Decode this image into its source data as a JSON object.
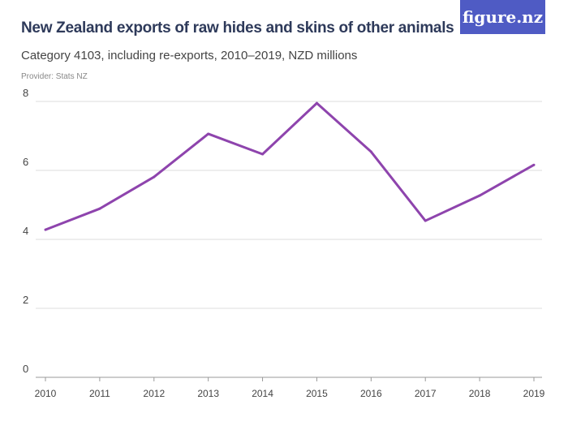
{
  "header": {
    "title": "New Zealand exports of raw hides and skins of other animals",
    "subtitle": "Category 4103, including re-exports, 2010–2019, NZD millions",
    "provider": "Provider: Stats NZ",
    "logo": "figure.nz"
  },
  "colors": {
    "line": "#8e44ad",
    "logo_bg": "#4f5bc4",
    "grid": "#dddddd"
  },
  "chart_data": {
    "type": "line",
    "title": "New Zealand exports of raw hides and skins of other animals",
    "xlabel": "",
    "ylabel": "",
    "ylim": [
      0,
      8
    ],
    "yticks": [
      0,
      2,
      4,
      6,
      8
    ],
    "grid": true,
    "categories": [
      "2010",
      "2011",
      "2012",
      "2013",
      "2014",
      "2015",
      "2016",
      "2017",
      "2018",
      "2019"
    ],
    "values": [
      4.28,
      4.89,
      5.81,
      7.06,
      6.47,
      7.95,
      6.54,
      4.54,
      5.27,
      6.16
    ]
  }
}
